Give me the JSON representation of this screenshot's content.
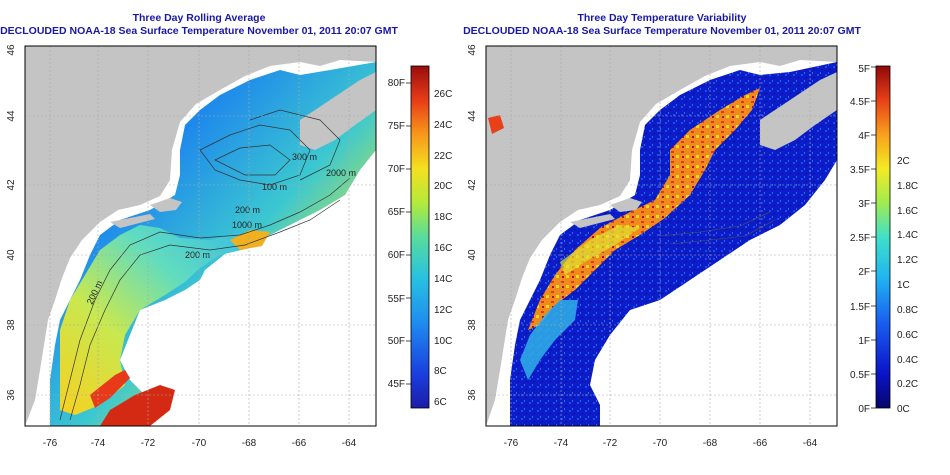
{
  "left_panel": {
    "title": "Three Day Rolling Average",
    "subtitle": "DECLOUDED NOAA-18 Sea Surface Temperature November 01, 2011 20:07 GMT",
    "lon_ticks": [
      "-76",
      "-74",
      "-72",
      "-70",
      "-68",
      "-66",
      "-64"
    ],
    "lat_ticks": [
      "36",
      "38",
      "40",
      "42",
      "44",
      "46"
    ],
    "contour_labels": [
      "200 m",
      "200 m",
      "300 m",
      "100 m",
      "200 m",
      "1000 m",
      "2000 m"
    ],
    "colorbar_f": [
      "45F",
      "50F",
      "55F",
      "60F",
      "65F",
      "70F",
      "75F",
      "80F"
    ],
    "colorbar_c": [
      "6C",
      "8C",
      "10C",
      "12C",
      "14C",
      "16C",
      "18C",
      "20C",
      "22C",
      "24C",
      "26C"
    ]
  },
  "right_panel": {
    "title": "Three Day Temperature Variability",
    "subtitle": "DECLOUDED NOAA-18 Sea Surface Temperature November 01, 2011 20:07 GMT",
    "lon_ticks": [
      "-76",
      "-74",
      "-72",
      "-70",
      "-68",
      "-66",
      "-64"
    ],
    "lat_ticks": [
      "36",
      "38",
      "40",
      "42",
      "44",
      "46"
    ],
    "colorbar_f": [
      "0F",
      "0.5F",
      "1F",
      "1.5F",
      "2F",
      "2.5F",
      "3F",
      "3.5F",
      "4F",
      "4.5F",
      "5F"
    ],
    "colorbar_c": [
      "0C",
      "0.2C",
      "0.4C",
      "0.6C",
      "0.8C",
      "1C",
      "1.2C",
      "1.4C",
      "1.6C",
      "1.8C",
      "2C"
    ]
  },
  "colors": {
    "title": "#1818a8",
    "land": "#c4c4c4",
    "cloud": "#ffffff",
    "colormap": [
      "#08086a",
      "#0b1dd0",
      "#1a6cf0",
      "#25b6e8",
      "#53d8b8",
      "#a8e85a",
      "#f0ee2a",
      "#f8a21c",
      "#e8441a",
      "#a81010"
    ]
  }
}
